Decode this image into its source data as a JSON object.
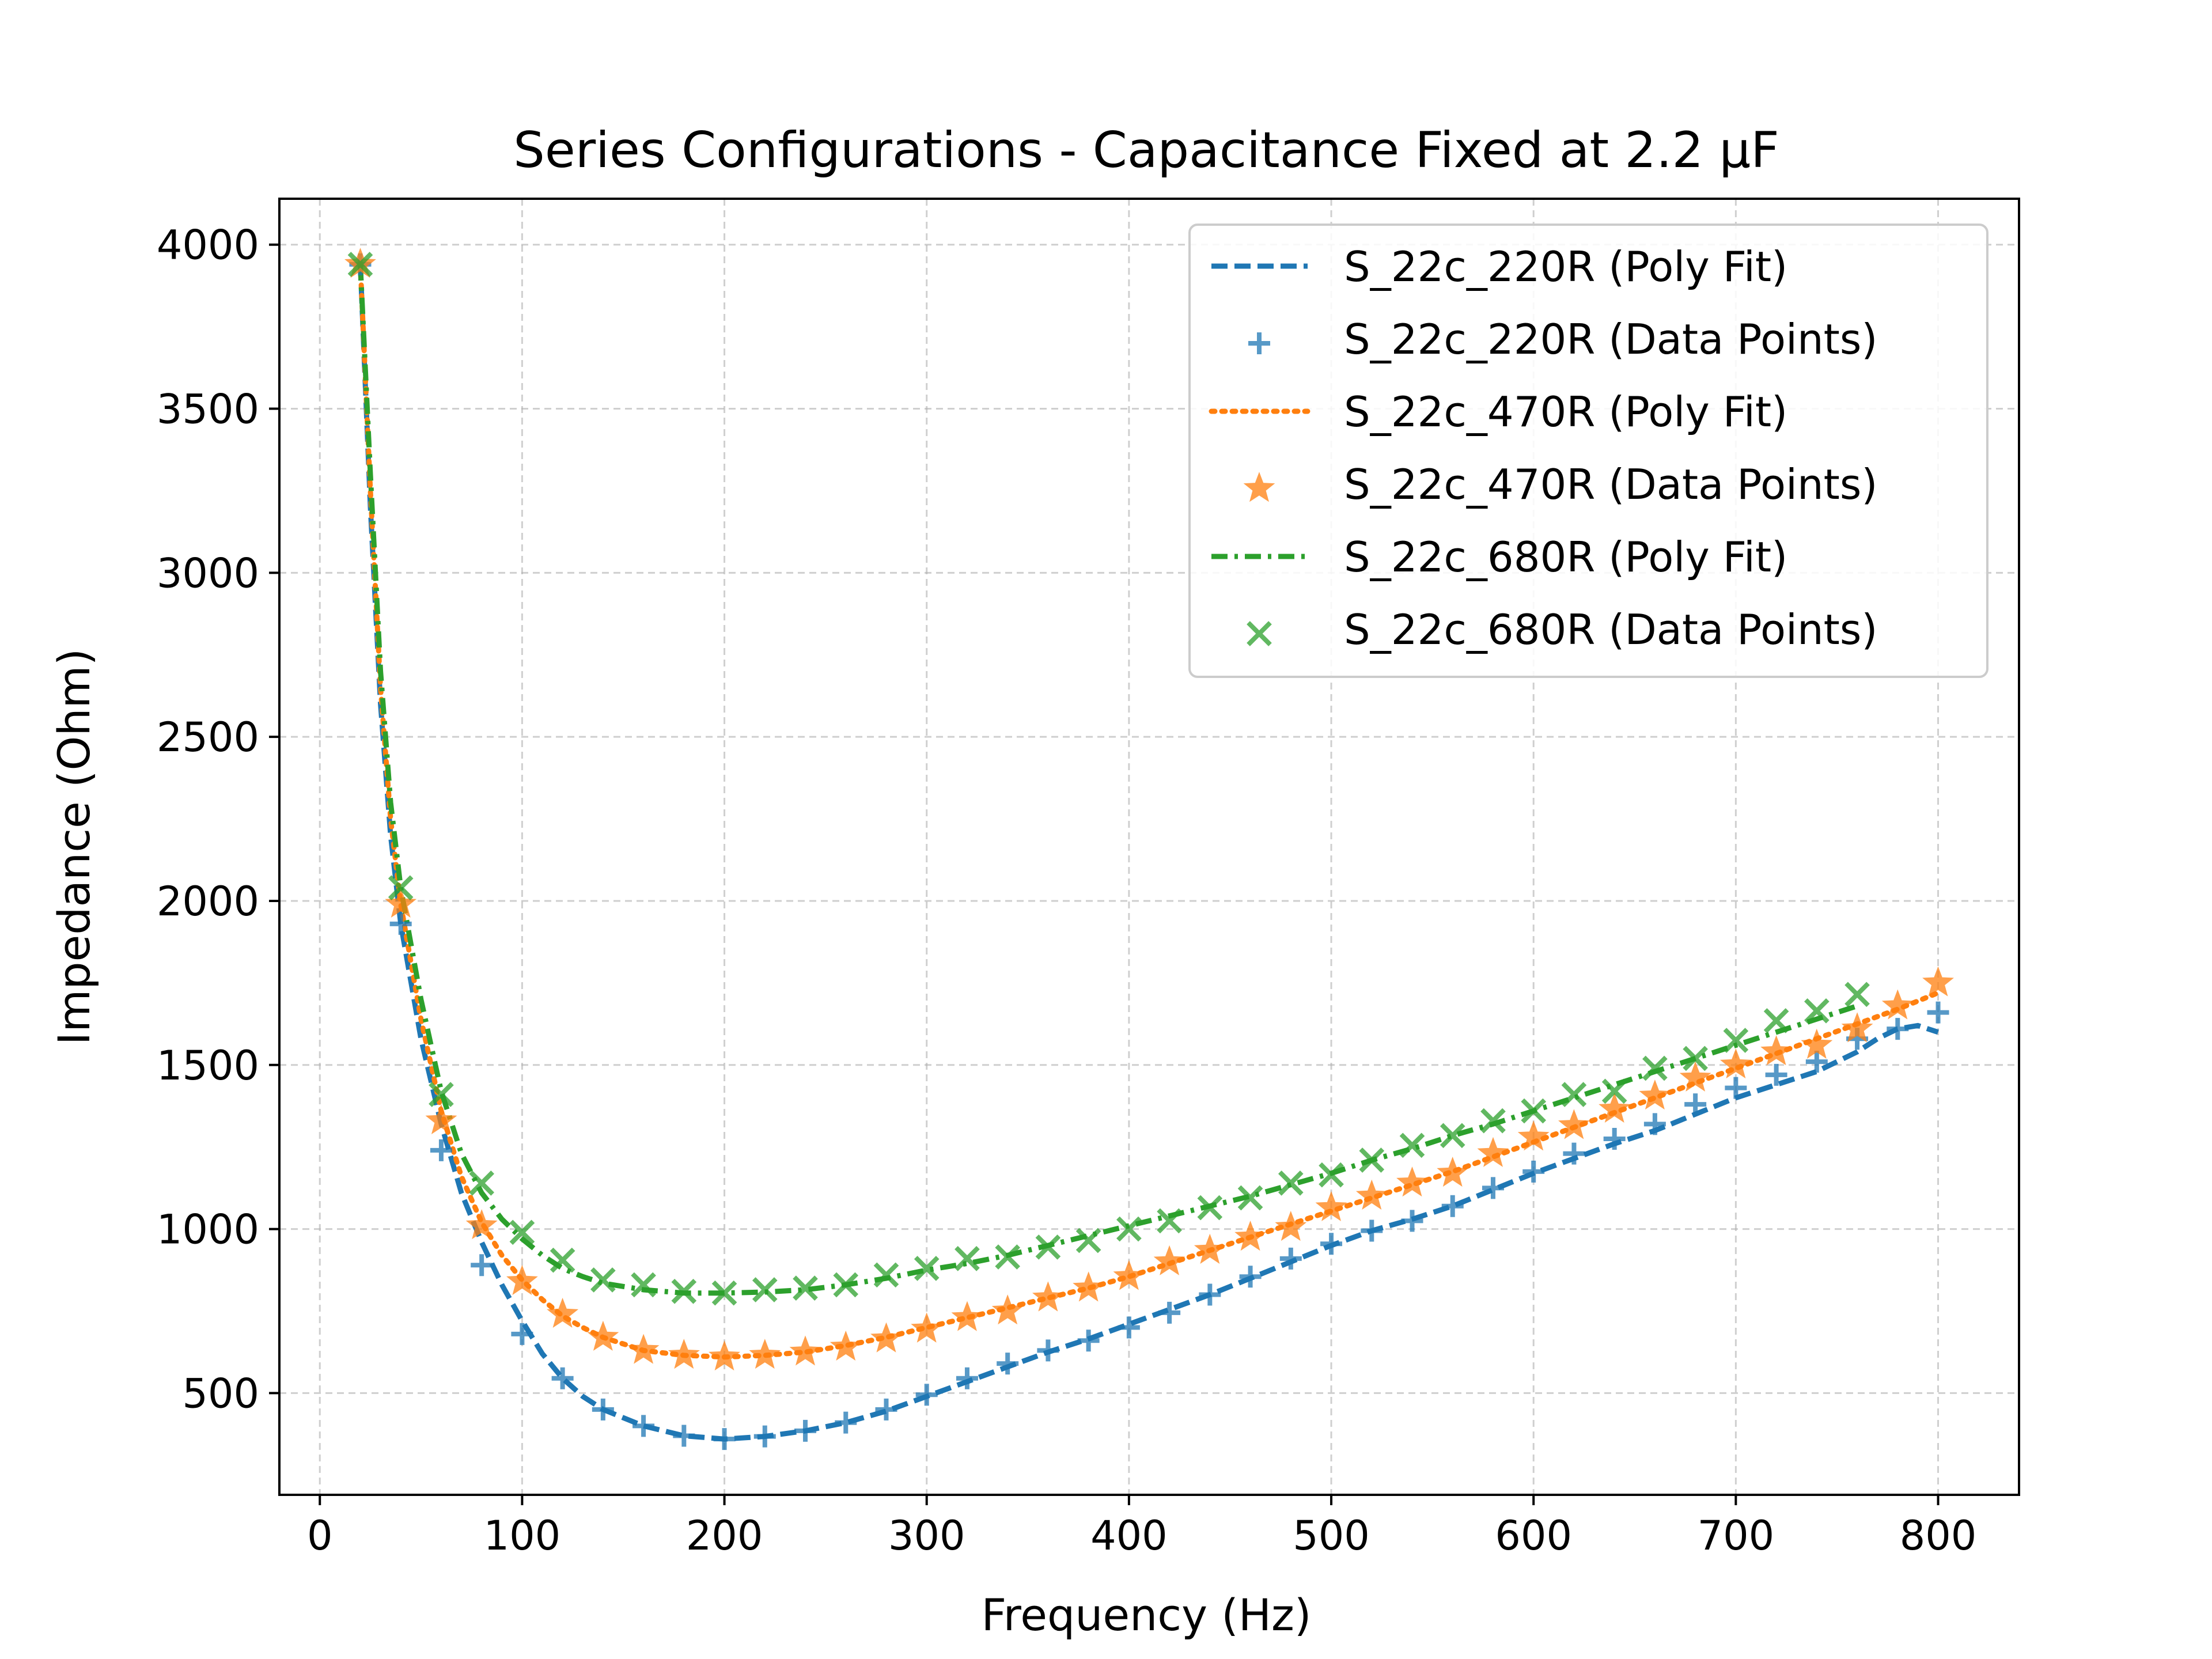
{
  "chart_data": {
    "type": "line",
    "title": "Series Configurations - Capacitance Fixed at 2.2 µF",
    "xlabel": "Frequency (Hz)",
    "ylabel": "Impedance (Ohm)",
    "xlim": [
      -20,
      840
    ],
    "ylim": [
      190,
      4140
    ],
    "xticks": [
      0,
      100,
      200,
      300,
      400,
      500,
      600,
      700,
      800
    ],
    "yticks": [
      500,
      1000,
      1500,
      2000,
      2500,
      3000,
      3500,
      4000
    ],
    "grid": true,
    "legend_position": "top-right",
    "series": [
      {
        "name": "S_22c_220R (Poly Fit)",
        "kind": "fit",
        "color": "#1f77b4",
        "dash": "dashed",
        "x": [
          20,
          25,
          30,
          35,
          40,
          50,
          60,
          70,
          80,
          90,
          100,
          110,
          120,
          130,
          140,
          160,
          180,
          200,
          220,
          240,
          260,
          280,
          300,
          320,
          340,
          360,
          380,
          400,
          420,
          440,
          460,
          480,
          500,
          520,
          540,
          560,
          580,
          600,
          620,
          640,
          660,
          680,
          700,
          720,
          740,
          760,
          770,
          780,
          790,
          800
        ],
        "y": [
          3940,
          3200,
          2600,
          2200,
          1930,
          1580,
          1320,
          1110,
          960,
          830,
          720,
          620,
          545,
          490,
          450,
          400,
          370,
          360,
          368,
          385,
          410,
          445,
          490,
          535,
          580,
          625,
          665,
          710,
          755,
          800,
          850,
          900,
          950,
          995,
          1030,
          1070,
          1120,
          1170,
          1215,
          1260,
          1300,
          1350,
          1400,
          1440,
          1480,
          1540,
          1580,
          1610,
          1620,
          1600
        ]
      },
      {
        "name": "S_22c_220R (Data Points)",
        "kind": "points",
        "marker": "plus",
        "color": "#1f77b4",
        "x": [
          20,
          40,
          60,
          80,
          100,
          120,
          140,
          160,
          180,
          200,
          220,
          240,
          260,
          280,
          300,
          320,
          340,
          360,
          380,
          400,
          420,
          440,
          460,
          480,
          500,
          520,
          540,
          560,
          580,
          600,
          620,
          640,
          660,
          680,
          700,
          720,
          740,
          760,
          780,
          800
        ],
        "y": [
          3940,
          1930,
          1240,
          890,
          680,
          545,
          450,
          400,
          370,
          360,
          368,
          385,
          410,
          450,
          495,
          545,
          590,
          630,
          660,
          700,
          745,
          800,
          855,
          910,
          955,
          995,
          1025,
          1070,
          1125,
          1175,
          1230,
          1275,
          1320,
          1380,
          1430,
          1470,
          1510,
          1580,
          1610,
          1660
        ]
      },
      {
        "name": "S_22c_470R (Poly Fit)",
        "kind": "fit",
        "color": "#ff7f0e",
        "dash": "dotted",
        "x": [
          20,
          25,
          30,
          35,
          40,
          50,
          60,
          70,
          80,
          90,
          100,
          110,
          120,
          130,
          140,
          160,
          180,
          200,
          220,
          240,
          260,
          280,
          300,
          320,
          340,
          360,
          380,
          400,
          420,
          440,
          460,
          480,
          500,
          520,
          540,
          560,
          580,
          600,
          620,
          640,
          660,
          680,
          700,
          720,
          740,
          760,
          780,
          800
        ],
        "y": [
          3940,
          3250,
          2650,
          2250,
          1990,
          1640,
          1360,
          1160,
          1020,
          920,
          845,
          785,
          735,
          700,
          670,
          630,
          615,
          610,
          615,
          625,
          645,
          670,
          700,
          730,
          760,
          790,
          820,
          855,
          895,
          935,
          975,
          1015,
          1055,
          1095,
          1135,
          1175,
          1220,
          1265,
          1310,
          1355,
          1400,
          1445,
          1490,
          1535,
          1580,
          1625,
          1670,
          1720
        ]
      },
      {
        "name": "S_22c_470R (Data Points)",
        "kind": "points",
        "marker": "star",
        "color": "#ff7f0e",
        "x": [
          20,
          40,
          60,
          80,
          100,
          120,
          140,
          160,
          180,
          200,
          220,
          240,
          260,
          280,
          300,
          320,
          340,
          360,
          380,
          400,
          420,
          440,
          460,
          480,
          500,
          520,
          540,
          560,
          580,
          600,
          620,
          640,
          660,
          680,
          700,
          720,
          740,
          760,
          780,
          800
        ],
        "y": [
          3940,
          1990,
          1330,
          1010,
          840,
          740,
          670,
          630,
          615,
          610,
          615,
          625,
          640,
          665,
          695,
          730,
          750,
          790,
          820,
          855,
          900,
          935,
          975,
          1005,
          1065,
          1100,
          1140,
          1170,
          1230,
          1280,
          1315,
          1365,
          1405,
          1460,
          1500,
          1540,
          1560,
          1610,
          1680,
          1750
        ]
      },
      {
        "name": "S_22c_680R (Poly Fit)",
        "kind": "fit",
        "color": "#2ca02c",
        "dash": "dashdot",
        "x": [
          20,
          25,
          30,
          35,
          40,
          50,
          60,
          70,
          80,
          90,
          100,
          110,
          120,
          130,
          140,
          160,
          180,
          200,
          220,
          240,
          260,
          280,
          300,
          320,
          340,
          360,
          380,
          400,
          420,
          440,
          460,
          480,
          500,
          520,
          540,
          560,
          580,
          600,
          620,
          640,
          660,
          680,
          700,
          720,
          740,
          760
        ],
        "y": [
          3940,
          3300,
          2700,
          2300,
          2040,
          1700,
          1420,
          1230,
          1110,
          1030,
          970,
          920,
          880,
          855,
          835,
          815,
          805,
          805,
          808,
          815,
          830,
          850,
          875,
          895,
          920,
          950,
          980,
          1010,
          1040,
          1070,
          1100,
          1135,
          1170,
          1210,
          1245,
          1285,
          1320,
          1360,
          1400,
          1440,
          1480,
          1520,
          1560,
          1600,
          1640,
          1680
        ]
      },
      {
        "name": "S_22c_680R (Data Points)",
        "kind": "points",
        "marker": "x",
        "color": "#2ca02c",
        "x": [
          20,
          40,
          60,
          80,
          100,
          120,
          140,
          160,
          180,
          200,
          220,
          240,
          260,
          280,
          300,
          320,
          340,
          360,
          380,
          400,
          420,
          440,
          460,
          480,
          500,
          520,
          540,
          560,
          580,
          600,
          620,
          640,
          660,
          680,
          700,
          720,
          740,
          760
        ],
        "y": [
          3940,
          2040,
          1410,
          1140,
          990,
          905,
          845,
          830,
          810,
          805,
          815,
          820,
          830,
          860,
          880,
          910,
          915,
          945,
          965,
          1000,
          1025,
          1065,
          1095,
          1140,
          1165,
          1210,
          1255,
          1285,
          1330,
          1360,
          1410,
          1420,
          1490,
          1520,
          1575,
          1635,
          1665,
          1715
        ]
      }
    ]
  }
}
